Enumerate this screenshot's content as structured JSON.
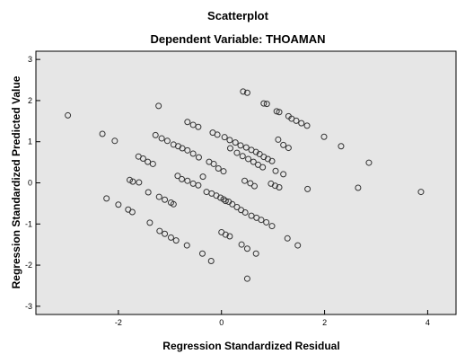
{
  "chart_data": {
    "type": "scatter",
    "title": "Scatterplot",
    "subtitle": "Dependent Variable: THOAMAN",
    "xlabel": "Regression Standardized Residual",
    "ylabel": "Regression Standardized Predicted Value",
    "xlim": [
      -3.6,
      4.55
    ],
    "ylim": [
      -3.2,
      3.2
    ],
    "xticks": [
      -2,
      0,
      2,
      4
    ],
    "yticks": [
      -3,
      -2,
      -1,
      0,
      1,
      2,
      3
    ],
    "grid": false,
    "plot_background": "#e6e6e6",
    "marker_color": "#333333",
    "points": [
      [
        -2.98,
        1.64
      ],
      [
        -2.31,
        1.19
      ],
      [
        -2.07,
        1.02
      ],
      [
        -1.22,
        1.87
      ],
      [
        -0.66,
        1.48
      ],
      [
        -0.55,
        1.41
      ],
      [
        -0.45,
        1.36
      ],
      [
        0.42,
        2.22
      ],
      [
        0.5,
        2.19
      ],
      [
        0.82,
        1.93
      ],
      [
        0.88,
        1.92
      ],
      [
        1.07,
        1.74
      ],
      [
        1.12,
        1.72
      ],
      [
        1.3,
        1.62
      ],
      [
        1.36,
        1.56
      ],
      [
        1.45,
        1.51
      ],
      [
        1.55,
        1.45
      ],
      [
        1.66,
        1.39
      ],
      [
        1.99,
        1.12
      ],
      [
        2.32,
        0.89
      ],
      [
        -1.28,
        1.16
      ],
      [
        -1.16,
        1.08
      ],
      [
        -1.05,
        1.02
      ],
      [
        -0.93,
        0.93
      ],
      [
        -0.84,
        0.89
      ],
      [
        -0.76,
        0.84
      ],
      [
        -0.66,
        0.79
      ],
      [
        -0.55,
        0.71
      ],
      [
        -0.44,
        0.62
      ],
      [
        -0.17,
        1.22
      ],
      [
        -0.08,
        1.17
      ],
      [
        0.06,
        1.11
      ],
      [
        0.16,
        1.04
      ],
      [
        0.27,
        0.98
      ],
      [
        0.37,
        0.91
      ],
      [
        0.48,
        0.86
      ],
      [
        0.58,
        0.8
      ],
      [
        0.67,
        0.75
      ],
      [
        0.74,
        0.7
      ],
      [
        0.82,
        0.63
      ],
      [
        0.9,
        0.58
      ],
      [
        0.98,
        0.53
      ],
      [
        1.1,
        1.05
      ],
      [
        1.2,
        0.92
      ],
      [
        1.3,
        0.85
      ],
      [
        1.05,
        0.29
      ],
      [
        1.2,
        0.21
      ],
      [
        1.67,
        -0.15
      ],
      [
        2.86,
        0.49
      ],
      [
        2.65,
        -0.12
      ],
      [
        3.87,
        -0.22
      ],
      [
        -1.61,
        0.64
      ],
      [
        -1.52,
        0.59
      ],
      [
        -1.43,
        0.51
      ],
      [
        -1.33,
        0.46
      ],
      [
        -0.24,
        0.51
      ],
      [
        -0.15,
        0.46
      ],
      [
        -0.06,
        0.35
      ],
      [
        0.04,
        0.28
      ],
      [
        0.17,
        0.84
      ],
      [
        0.3,
        0.73
      ],
      [
        0.41,
        0.65
      ],
      [
        0.52,
        0.58
      ],
      [
        0.62,
        0.51
      ],
      [
        0.71,
        0.44
      ],
      [
        0.8,
        0.38
      ],
      [
        -1.78,
        0.07
      ],
      [
        -1.72,
        0.03
      ],
      [
        -1.6,
        0.01
      ],
      [
        -0.85,
        0.17
      ],
      [
        -0.77,
        0.09
      ],
      [
        -0.66,
        0.05
      ],
      [
        -0.55,
        -0.02
      ],
      [
        -0.45,
        -0.06
      ],
      [
        -2.23,
        -0.38
      ],
      [
        -2.0,
        -0.53
      ],
      [
        -1.81,
        -0.65
      ],
      [
        -1.73,
        -0.71
      ],
      [
        -1.42,
        -0.23
      ],
      [
        -1.21,
        -0.34
      ],
      [
        -1.1,
        -0.41
      ],
      [
        -0.98,
        -0.48
      ],
      [
        -0.93,
        -0.52
      ],
      [
        -0.36,
        0.15
      ],
      [
        -0.29,
        -0.22
      ],
      [
        -0.19,
        -0.26
      ],
      [
        -0.1,
        -0.31
      ],
      [
        -0.02,
        -0.36
      ],
      [
        0.04,
        -0.4
      ],
      [
        0.08,
        -0.44
      ],
      [
        0.14,
        -0.46
      ],
      [
        0.21,
        -0.52
      ],
      [
        0.3,
        -0.59
      ],
      [
        0.38,
        -0.66
      ],
      [
        0.46,
        -0.72
      ],
      [
        0.58,
        -0.8
      ],
      [
        0.68,
        -0.85
      ],
      [
        0.77,
        -0.9
      ],
      [
        0.87,
        -0.96
      ],
      [
        0.98,
        -1.05
      ],
      [
        0.45,
        0.05
      ],
      [
        0.56,
        -0.01
      ],
      [
        0.64,
        -0.08
      ],
      [
        0.96,
        -0.02
      ],
      [
        1.04,
        -0.07
      ],
      [
        1.12,
        -0.11
      ],
      [
        -1.39,
        -0.97
      ],
      [
        -1.2,
        -1.17
      ],
      [
        -1.1,
        -1.24
      ],
      [
        -0.98,
        -1.33
      ],
      [
        -0.88,
        -1.4
      ],
      [
        -0.67,
        -1.52
      ],
      [
        -0.37,
        -1.72
      ],
      [
        -0.2,
        -1.9
      ],
      [
        0.0,
        -1.2
      ],
      [
        0.08,
        -1.26
      ],
      [
        0.16,
        -1.3
      ],
      [
        0.39,
        -1.5
      ],
      [
        0.5,
        -1.6
      ],
      [
        0.67,
        -1.72
      ],
      [
        1.28,
        -1.35
      ],
      [
        1.48,
        -1.52
      ],
      [
        0.5,
        -2.33
      ]
    ]
  }
}
